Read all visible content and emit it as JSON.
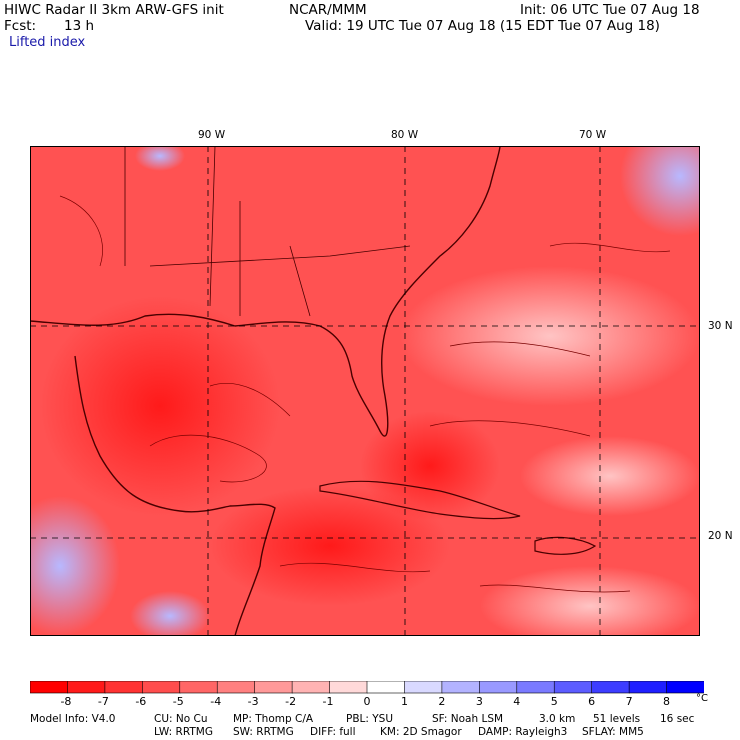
{
  "header": {
    "model_title": "HIWC Radar II 3km ARW-GFS init",
    "org": "NCAR/MMM",
    "init": "Init: 06 UTC Tue 07 Aug 18",
    "fcst_label": "Fcst:",
    "fcst_value": "13 h",
    "valid": "Valid: 19 UTC Tue 07 Aug 18 (15 EDT Tue 07 Aug 18)"
  },
  "field_title": "Lifted index",
  "map": {
    "lon_labels": [
      "90 W",
      "80 W",
      "70 W"
    ],
    "lat_labels": [
      "30 N",
      "20 N"
    ]
  },
  "colorbar": {
    "labels": [
      "-8",
      "-7",
      "-6",
      "-5",
      "-4",
      "-3",
      "-2",
      "-1",
      "0",
      "1",
      "2",
      "3",
      "4",
      "5",
      "6",
      "7",
      "8"
    ],
    "unit": "°C",
    "colors": [
      "#ff0000",
      "#ff1a1a",
      "#ff3333",
      "#ff4d4d",
      "#ff6666",
      "#ff8080",
      "#ff9999",
      "#ffb3b3",
      "#ffd9d9",
      "#ffffff",
      "#d9d9ff",
      "#b3b3ff",
      "#9999ff",
      "#7a7aff",
      "#5c5cff",
      "#3d3dff",
      "#1f1fff",
      "#0000ff"
    ]
  },
  "footer": {
    "line1": [
      "Model Info: V4.0",
      "CU: No Cu",
      "MP: Thomp C/A",
      "PBL: YSU",
      "SF: Noah LSM",
      "3.0 km",
      "51 levels",
      "16 sec"
    ],
    "line2": [
      "LW: RRTMG",
      "SW: RRTMG",
      "DIFF: full",
      "KM: 2D Smagor",
      "DAMP: Rayleigh3",
      "SFLAY: MM5"
    ]
  }
}
